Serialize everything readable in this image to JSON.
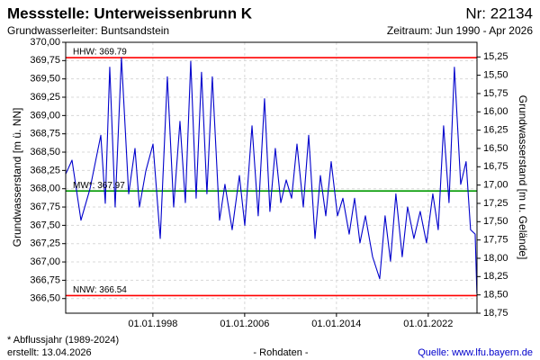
{
  "chart_data": {
    "type": "line",
    "title": "Messstelle: Unterweissenbrunn K",
    "number": "Nr: 22134",
    "subtitle": "Grundwasserleiter: Buntsandstein",
    "period": "Zeitraum: Jun 1990 - Apr 2026",
    "ylabel": "Grundwasserstand [m ü. NN]",
    "y2label": "Grundwasserstand [m u. Gelände]",
    "footnote": "* Abflussjahr (1989-2024)",
    "created": "erstellt:  13.04.2026",
    "datatype": "- Rohdaten -",
    "source": "Quelle: www.lfu.bayern.de",
    "grid": true,
    "xlim": [
      1990.4,
      2026.25
    ],
    "xticks": [
      {
        "value": 1998,
        "label": "01.01.1998"
      },
      {
        "value": 2006,
        "label": "01.01.2006"
      },
      {
        "value": 2014,
        "label": "01.01.2014"
      },
      {
        "value": 2022,
        "label": "01.01.2022"
      }
    ],
    "ylim": [
      366.3,
      370.0
    ],
    "yticks": [
      {
        "value": 370.0,
        "label": "370,00"
      },
      {
        "value": 369.75,
        "label": "369,75"
      },
      {
        "value": 369.5,
        "label": "369,50"
      },
      {
        "value": 369.25,
        "label": "369,25"
      },
      {
        "value": 369.0,
        "label": "369,00"
      },
      {
        "value": 368.75,
        "label": "368,75"
      },
      {
        "value": 368.5,
        "label": "368,50"
      },
      {
        "value": 368.25,
        "label": "368,25"
      },
      {
        "value": 368.0,
        "label": "368,00"
      },
      {
        "value": 367.75,
        "label": "367,75"
      },
      {
        "value": 367.5,
        "label": "367,50"
      },
      {
        "value": 367.25,
        "label": "367,25"
      },
      {
        "value": 367.0,
        "label": "367,00"
      },
      {
        "value": 366.75,
        "label": "366,75"
      },
      {
        "value": 366.5,
        "label": "366,50"
      }
    ],
    "y2lim": [
      18.75,
      15.05
    ],
    "y2ticks": [
      {
        "value": 15.25,
        "label": "15,25"
      },
      {
        "value": 15.5,
        "label": "15,50"
      },
      {
        "value": 15.75,
        "label": "15,75"
      },
      {
        "value": 16.0,
        "label": "16,00"
      },
      {
        "value": 16.25,
        "label": "16,25"
      },
      {
        "value": 16.5,
        "label": "16,50"
      },
      {
        "value": 16.75,
        "label": "16,75"
      },
      {
        "value": 17.0,
        "label": "17,00"
      },
      {
        "value": 17.25,
        "label": "17,25"
      },
      {
        "value": 17.5,
        "label": "17,50"
      },
      {
        "value": 17.75,
        "label": "17,75"
      },
      {
        "value": 18.0,
        "label": "18,00"
      },
      {
        "value": 18.25,
        "label": "18,25"
      },
      {
        "value": 18.5,
        "label": "18,50"
      },
      {
        "value": 18.75,
        "label": "18,75"
      }
    ],
    "reference_lines": [
      {
        "label": "HHW: 369.79",
        "value": 369.79,
        "color": "#ff0000"
      },
      {
        "label": "MW*: 367.97",
        "value": 367.97,
        "color": "#009900"
      },
      {
        "label": "NNW: 366.54",
        "value": 366.54,
        "color": "#ff0000"
      }
    ],
    "series": [
      {
        "name": "Grundwasserstand",
        "color": "#0000cc",
        "x": [
          1990.4,
          1990.95,
          1991.73,
          1992.52,
          1993.46,
          1993.85,
          1994.24,
          1994.71,
          1995.26,
          1995.89,
          1996.44,
          1996.83,
          1997.38,
          1998.01,
          1998.64,
          1999.26,
          1999.81,
          2000.36,
          2000.83,
          2001.3,
          2001.77,
          2002.24,
          2002.71,
          2003.18,
          2003.81,
          2004.28,
          2004.91,
          2005.54,
          2006.01,
          2006.64,
          2007.18,
          2007.73,
          2008.2,
          2008.67,
          2009.15,
          2009.62,
          2010.09,
          2010.56,
          2011.11,
          2011.58,
          2012.13,
          2012.6,
          2013.07,
          2013.54,
          2014.09,
          2014.56,
          2015.11,
          2015.58,
          2016.05,
          2016.52,
          2017.15,
          2017.77,
          2018.24,
          2018.71,
          2019.18,
          2019.73,
          2020.2,
          2020.75,
          2021.3,
          2021.85,
          2022.4,
          2022.87,
          2023.34,
          2023.81,
          2024.28,
          2024.83,
          2025.3,
          2025.69,
          2026.09,
          2026.24
        ],
        "values": [
          368.2,
          368.39,
          367.57,
          368.0,
          368.73,
          367.8,
          369.66,
          367.75,
          369.79,
          367.93,
          368.55,
          367.75,
          368.24,
          368.61,
          367.32,
          369.53,
          367.75,
          368.92,
          367.81,
          369.74,
          367.87,
          369.59,
          367.93,
          369.53,
          367.57,
          368.06,
          367.44,
          368.18,
          367.5,
          368.86,
          367.63,
          369.23,
          367.69,
          368.55,
          367.81,
          368.12,
          367.87,
          368.61,
          367.75,
          368.73,
          367.32,
          368.18,
          367.63,
          368.37,
          367.63,
          367.87,
          367.38,
          367.87,
          367.26,
          367.63,
          367.07,
          366.77,
          367.63,
          367.01,
          367.93,
          367.07,
          367.75,
          367.32,
          367.69,
          367.26,
          367.93,
          367.44,
          368.86,
          367.81,
          369.66,
          368.06,
          368.37,
          367.44,
          367.38,
          366.57
        ]
      }
    ]
  }
}
